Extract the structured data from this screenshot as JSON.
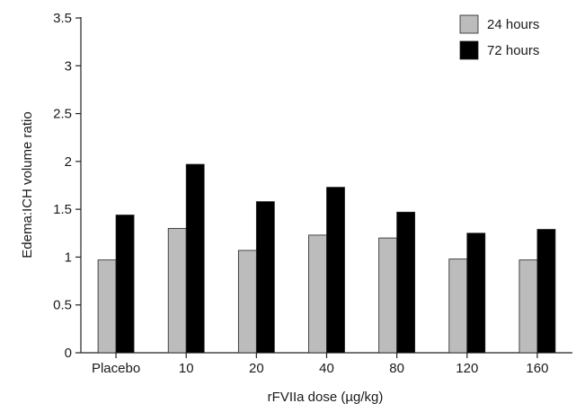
{
  "chart_data": {
    "type": "bar",
    "title": "",
    "xlabel": "rFVIIa dose (µg/kg)",
    "ylabel": "Edema:ICH volume ratio",
    "categories": [
      "Placebo",
      "10",
      "20",
      "40",
      "80",
      "120",
      "160"
    ],
    "series": [
      {
        "name": "24 hours",
        "color": "#bcbcbc",
        "values": [
          0.97,
          1.3,
          1.07,
          1.23,
          1.2,
          0.98,
          0.97
        ]
      },
      {
        "name": "72 hours",
        "color": "#000000",
        "values": [
          1.44,
          1.97,
          1.58,
          1.73,
          1.47,
          1.25,
          1.29
        ]
      }
    ],
    "ylim": [
      0,
      3.5
    ],
    "yticks": [
      "0",
      "0.5",
      "1",
      "1.5",
      "2",
      "2.5",
      "3",
      "3.5"
    ],
    "grid": false,
    "legend_position": "top-right"
  }
}
